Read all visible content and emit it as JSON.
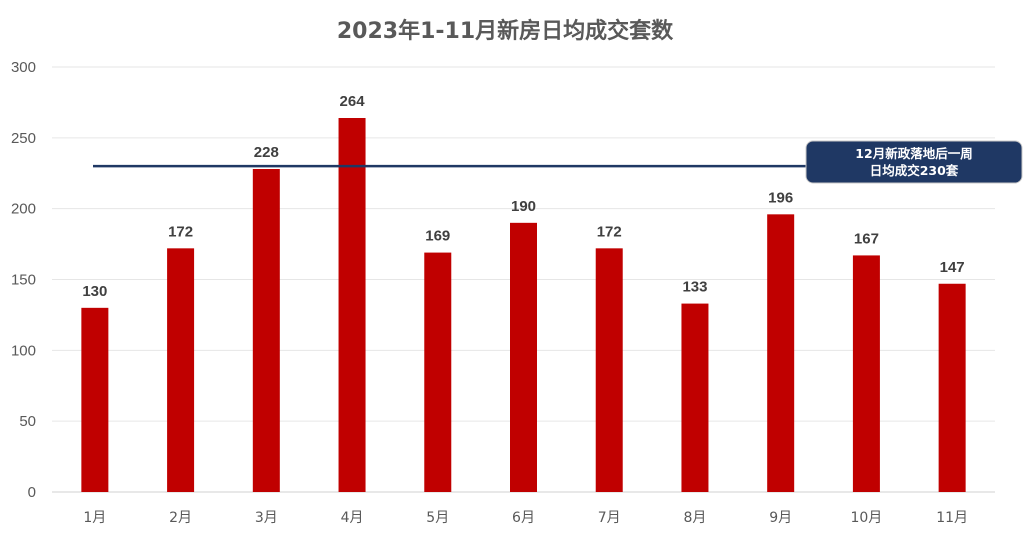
{
  "chart_data": {
    "type": "bar",
    "title": "2023年1-11月新房日均成交套数",
    "xlabel": "",
    "ylabel": "",
    "categories": [
      "1月",
      "2月",
      "3月",
      "4月",
      "5月",
      "6月",
      "7月",
      "8月",
      "9月",
      "10月",
      "11月"
    ],
    "values": [
      130,
      172,
      228,
      264,
      169,
      190,
      172,
      133,
      196,
      167,
      147
    ],
    "ylim": [
      0,
      300
    ],
    "yticks": [
      0,
      50,
      100,
      150,
      200,
      250,
      300
    ],
    "grid": true,
    "legend": "none",
    "bar_color": "#C00000",
    "reference_line": {
      "value": 230,
      "color": "#1F3864",
      "label_lines": [
        "12月新政落地后一周",
        "日均成交230套"
      ]
    }
  }
}
